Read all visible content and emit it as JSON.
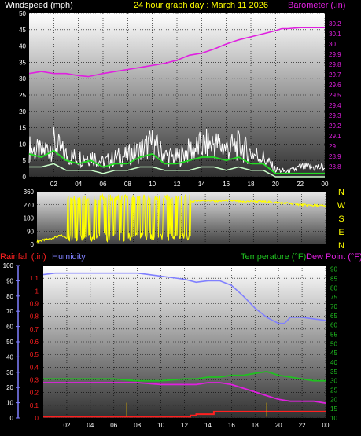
{
  "header": {
    "left_label": "Windspeed (mph)",
    "center_label": "24 hour graph day : March 11 2026",
    "right_label": "Barometer (.in)"
  },
  "lower_header": {
    "rainfall_label": "Rainfall (.in)",
    "humidity_label": "Humidity",
    "temperature_label": "Temperature (°F)",
    "dewpoint_label": "Dew Point (°F)"
  },
  "x_ticks": [
    "02",
    "04",
    "06",
    "08",
    "10",
    "12",
    "14",
    "16",
    "18",
    "20",
    "22",
    "00"
  ],
  "colors": {
    "wind": "#ffffff",
    "wind_avg": "#22dd22",
    "wind_low": "#caffca",
    "barometer": "#e020e0",
    "direction": "#ffff00",
    "rain": "#ff2020",
    "humidity": "#8080ff",
    "temperature": "#20c020",
    "dewpoint": "#e020e0",
    "rain_tick": "#e0b000"
  },
  "chart_data": [
    {
      "type": "line",
      "name_ref": "wind-and-barometer",
      "xlim": [
        0,
        24
      ],
      "y_left": {
        "label": "Windspeed (mph)",
        "ylim": [
          0,
          50
        ],
        "ticks": [
          "0",
          "5",
          "10",
          "15",
          "20",
          "25",
          "30",
          "35",
          "40",
          "45",
          "50"
        ]
      },
      "y_right": {
        "label": "Barometer (.in)",
        "ylim": [
          28.7,
          30.3
        ],
        "ticks": [
          "28.8",
          "28.9",
          "29",
          "29.1",
          "29.2",
          "29.3",
          "29.4",
          "29.5",
          "29.6",
          "29.7",
          "29.8",
          "29.9",
          "30",
          "30.1",
          "30.2"
        ]
      },
      "series": [
        {
          "key": "barometer",
          "axis": "right",
          "x": [
            0,
            1,
            2,
            3,
            4,
            4.8,
            6,
            7,
            8,
            9,
            10,
            11,
            12,
            13,
            14,
            15,
            16,
            17,
            18,
            19,
            20,
            20.5,
            21,
            22,
            23,
            24
          ],
          "y": [
            29.71,
            29.73,
            29.71,
            29.71,
            29.69,
            29.68,
            29.71,
            29.73,
            29.75,
            29.77,
            29.79,
            29.81,
            29.84,
            29.89,
            29.91,
            29.95,
            30.0,
            30.04,
            30.07,
            30.1,
            30.13,
            30.15,
            30.15,
            30.16,
            30.16,
            30.16
          ]
        },
        {
          "key": "wind_gust",
          "axis": "left",
          "x": [
            0,
            1,
            2,
            3,
            4,
            5,
            6,
            7,
            8,
            9,
            10,
            11,
            12,
            13,
            14,
            15,
            16,
            17,
            18,
            19,
            20,
            21,
            22,
            23,
            24
          ],
          "y": [
            12,
            10,
            14,
            9,
            8,
            9,
            6,
            8,
            9,
            11,
            14,
            9,
            8,
            11,
            13,
            14,
            12,
            13,
            10,
            8,
            3,
            2,
            4,
            4,
            4
          ]
        },
        {
          "key": "wind_avg",
          "axis": "left",
          "x": [
            0,
            1,
            2,
            3,
            4,
            5,
            6,
            7,
            8,
            9,
            10,
            11,
            12,
            13,
            14,
            15,
            16,
            17,
            18,
            19,
            20,
            21,
            22,
            23,
            24
          ],
          "y": [
            7,
            6,
            8,
            5,
            4,
            5,
            3,
            4,
            4,
            6,
            7,
            4,
            4,
            5,
            6,
            6,
            5,
            6,
            4,
            4,
            1,
            1,
            1,
            1,
            1
          ]
        },
        {
          "key": "wind_low",
          "axis": "left",
          "x": [
            0,
            1,
            2,
            3,
            4,
            5,
            6,
            7,
            8,
            9,
            10,
            11,
            12,
            13,
            14,
            15,
            16,
            17,
            18,
            19,
            20,
            21,
            22,
            23,
            24
          ],
          "y": [
            3,
            3,
            4,
            2,
            2,
            2,
            1,
            2,
            2,
            3,
            3,
            2,
            2,
            2,
            3,
            3,
            2,
            3,
            2,
            2,
            0,
            0,
            0,
            0,
            0
          ]
        }
      ]
    },
    {
      "type": "scatter",
      "name_ref": "wind-direction",
      "xlim": [
        0,
        24
      ],
      "ylim": [
        0,
        360
      ],
      "y_ticks": [
        "0",
        "90",
        "180",
        "270",
        "360"
      ],
      "compass_labels": [
        "N",
        "W",
        "S",
        "E",
        "N"
      ],
      "series": [
        {
          "key": "direction",
          "x": [
            0,
            1,
            2,
            2.5,
            3,
            3.5,
            4,
            4.5,
            5,
            5.5,
            6,
            6.5,
            7,
            7.5,
            8,
            8.5,
            9,
            9.5,
            10,
            10.5,
            11,
            11.5,
            12,
            12.5,
            13,
            14,
            15,
            16,
            17,
            18,
            19,
            20,
            21,
            22,
            23,
            24
          ],
          "y": [
            20,
            35,
            60,
            45,
            330,
            30,
            320,
            40,
            310,
            60,
            300,
            45,
            320,
            30,
            300,
            40,
            320,
            60,
            310,
            40,
            300,
            50,
            310,
            290,
            295,
            300,
            295,
            300,
            290,
            295,
            290,
            285,
            280,
            270,
            265,
            262
          ]
        }
      ]
    },
    {
      "type": "line",
      "name_ref": "rain-humidity-temperature",
      "xlim": [
        0,
        24
      ],
      "y_left_rain": {
        "label": "Rainfall (.in)",
        "ylim": [
          0,
          1.2
        ],
        "ticks": [
          "0",
          "0.1",
          "0.2",
          "0.3",
          "0.4",
          "0.5",
          "0.6",
          "0.7",
          "0.8",
          "0.9",
          "1",
          "1.1"
        ]
      },
      "y_left_humidity": {
        "label": "Humidity",
        "ylim": [
          0,
          100
        ],
        "ticks": [
          "0",
          "10",
          "20",
          "30",
          "40",
          "50",
          "60",
          "70",
          "80",
          "90",
          "100"
        ]
      },
      "y_right": {
        "label": "Temperature (°F)",
        "ylim": [
          10,
          92
        ],
        "ticks": [
          "10",
          "15",
          "20",
          "25",
          "30",
          "35",
          "40",
          "45",
          "50",
          "55",
          "60",
          "65",
          "70",
          "75",
          "80",
          "85",
          "90"
        ]
      },
      "series": [
        {
          "key": "humidity",
          "axis": "humidity",
          "x": [
            0,
            1,
            2,
            4,
            6,
            8,
            9,
            10,
            11,
            12,
            13,
            14,
            15,
            16,
            17,
            18,
            19,
            20,
            20.5,
            21,
            22,
            23,
            24
          ],
          "y": [
            94,
            95,
            95,
            95,
            95,
            95,
            94,
            93,
            92,
            91,
            89,
            90,
            90,
            87,
            80,
            72,
            66,
            62,
            62,
            66,
            66,
            65,
            64
          ]
        },
        {
          "key": "temperature",
          "axis": "right",
          "x": [
            0,
            1,
            2,
            4,
            6,
            8,
            10,
            12,
            13,
            14,
            15,
            16,
            17,
            18,
            19,
            20,
            21,
            22,
            23,
            24
          ],
          "y": [
            31,
            31,
            31,
            31,
            31,
            30,
            30,
            31,
            31,
            32,
            32,
            33,
            33,
            34,
            35,
            33,
            32,
            31,
            30,
            30
          ]
        },
        {
          "key": "dewpoint",
          "axis": "right",
          "x": [
            0,
            1,
            2,
            4,
            6,
            8,
            10,
            12,
            13,
            14,
            15,
            16,
            17,
            18,
            19,
            20,
            21,
            22,
            23,
            24
          ],
          "y": [
            29,
            29,
            29,
            29,
            29,
            29,
            28,
            28,
            28,
            29,
            29,
            28,
            26,
            24,
            22,
            20,
            19,
            19,
            19,
            18
          ]
        },
        {
          "key": "rain",
          "axis": "rain",
          "x": [
            0,
            12,
            12.5,
            13,
            14,
            14.5,
            15,
            16,
            17,
            18,
            19,
            20,
            21,
            22,
            23,
            24
          ],
          "y": [
            0.01,
            0.01,
            0.02,
            0.03,
            0.03,
            0.05,
            0.05,
            0.05,
            0.05,
            0.05,
            0.05,
            0.05,
            0.05,
            0.05,
            0.05,
            0.05
          ]
        }
      ],
      "rain_rate_marks": [
        7.1,
        19.0
      ]
    }
  ]
}
